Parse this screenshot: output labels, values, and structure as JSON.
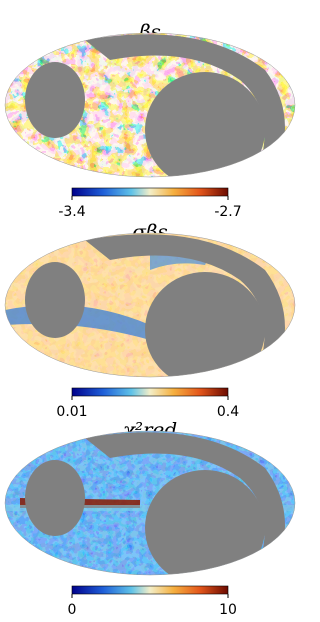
{
  "chart_data": [
    {
      "type": "map",
      "title": "βs",
      "clim": [
        -3.4,
        -2.7
      ],
      "cticks": [
        -3.4,
        -2.7
      ]
    },
    {
      "type": "map",
      "title": "σβs",
      "clim": [
        0.01,
        0.4
      ],
      "cticks": [
        0.01,
        0.4
      ]
    },
    {
      "type": "map",
      "title": "χ²red",
      "clim": [
        0,
        10
      ],
      "cticks": [
        0,
        10
      ]
    }
  ]
}
